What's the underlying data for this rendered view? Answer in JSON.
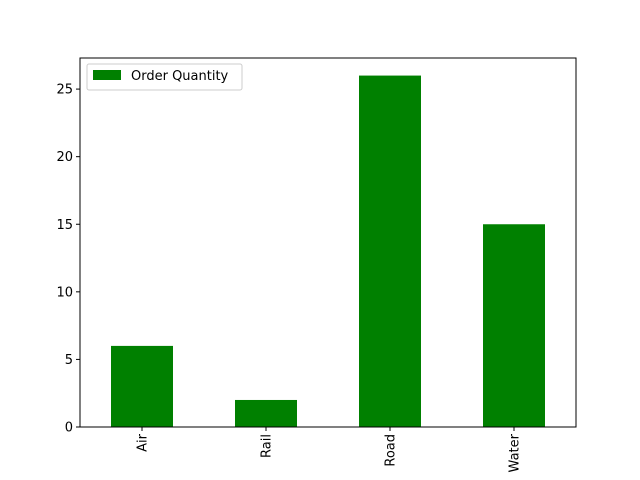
{
  "chart_data": {
    "type": "bar",
    "categories": [
      "Air",
      "Rail",
      "Road",
      "Water"
    ],
    "series": [
      {
        "name": "Order Quantity",
        "values": [
          6,
          2,
          26,
          15
        ],
        "color": "#008000"
      }
    ],
    "title": "",
    "xlabel": "",
    "ylabel": "",
    "ylim": [
      0,
      27.3
    ],
    "yticks": [
      0,
      5,
      10,
      15,
      20,
      25
    ],
    "grid": false,
    "legend": "top-left",
    "x_tick_rotation": "vertical"
  }
}
